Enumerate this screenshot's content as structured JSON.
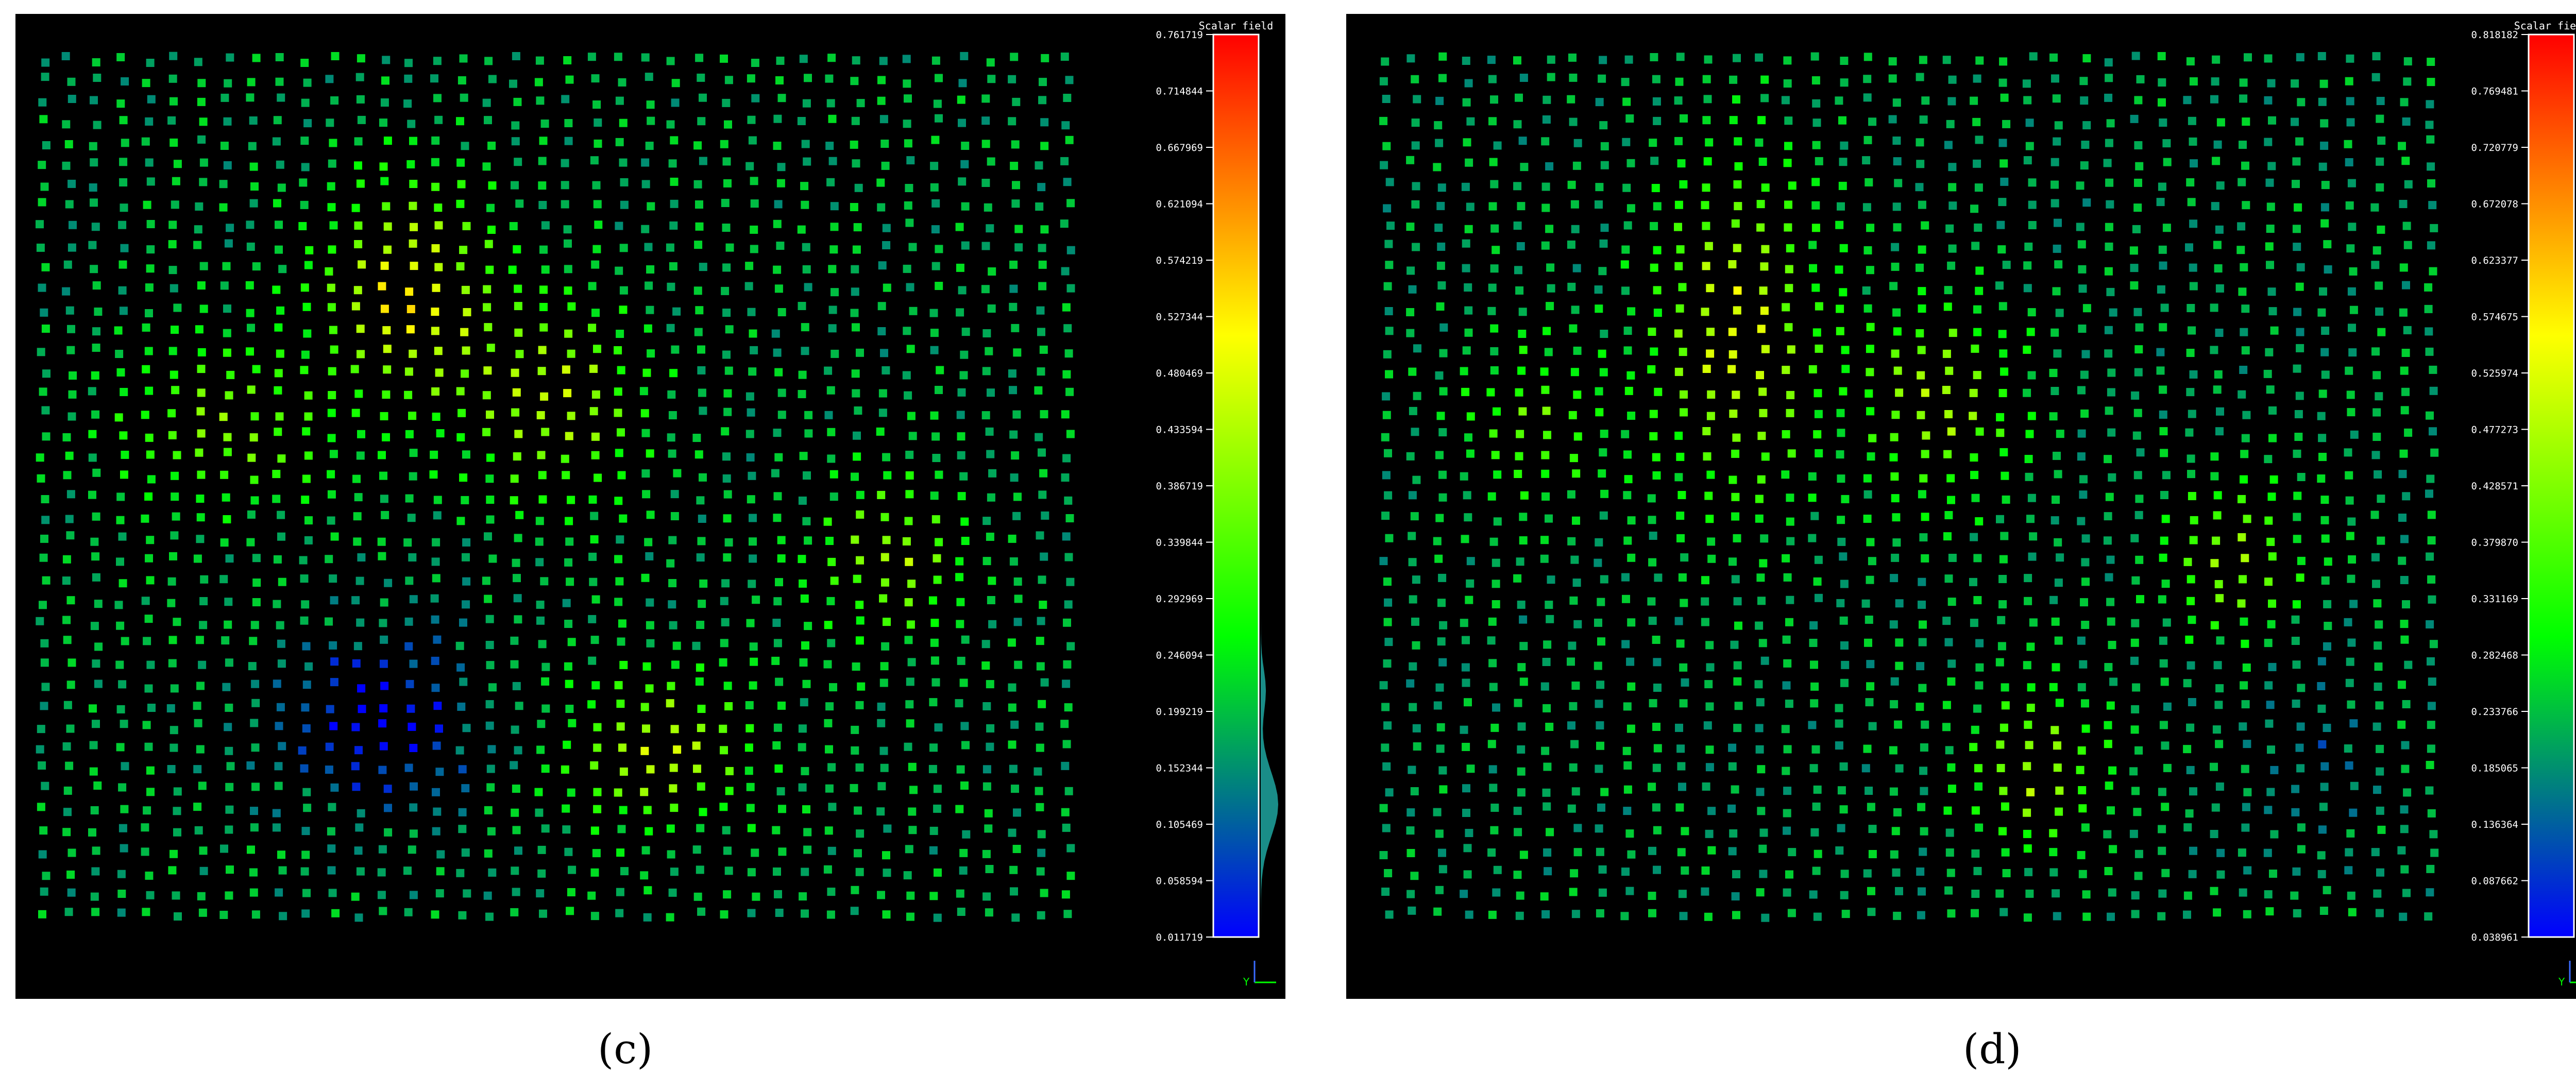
{
  "chart_data": [
    {
      "type": "scatter",
      "panel": "c",
      "caption": "(c)",
      "title": "",
      "colorbar": {
        "title": "Scalar field",
        "min": 0.011719,
        "max": 0.761719,
        "ticks": [
          "0.761719",
          "0.714844",
          "0.667969",
          "0.621094",
          "0.574219",
          "0.527344",
          "0.480469",
          "0.433594",
          "0.386719",
          "0.339844",
          "0.292969",
          "0.246094",
          "0.199219",
          "0.152344",
          "0.105469",
          "0.058594",
          "0.011719"
        ],
        "colormap": [
          "#0000ff",
          "#00ff00",
          "#ffff00",
          "#ff0000"
        ]
      },
      "grid": {
        "cols": 40,
        "rows": 42,
        "base_value": 0.2,
        "point_color": "scalar"
      },
      "hotspots": [
        {
          "label": "upper-left high region",
          "cx": 0.36,
          "cy": 0.28,
          "sx": 0.08,
          "sy": 0.12,
          "value": 0.38
        },
        {
          "label": "upper-middle high region",
          "cx": 0.5,
          "cy": 0.4,
          "sx": 0.08,
          "sy": 0.1,
          "value": 0.3
        },
        {
          "label": "left band",
          "cx": 0.18,
          "cy": 0.43,
          "sx": 0.09,
          "sy": 0.09,
          "value": 0.22
        },
        {
          "label": "right high region",
          "cx": 0.82,
          "cy": 0.58,
          "sx": 0.06,
          "sy": 0.08,
          "value": 0.28
        },
        {
          "label": "lower-middle high region",
          "cx": 0.6,
          "cy": 0.8,
          "sx": 0.08,
          "sy": 0.08,
          "value": 0.32
        },
        {
          "label": "lower-left low region",
          "cx": 0.33,
          "cy": 0.77,
          "sx": 0.09,
          "sy": 0.09,
          "value": -0.23
        }
      ],
      "peak": {
        "value": 0.761719
      },
      "axis_indicator": {
        "label": "Y",
        "icon": "axis-triad-icon"
      }
    },
    {
      "type": "scatter",
      "panel": "d",
      "caption": "(d)",
      "title": "",
      "colorbar": {
        "title": "Scalar field",
        "min": 0.038961,
        "max": 0.818182,
        "ticks": [
          "0.818182",
          "0.769481",
          "0.720779",
          "0.672078",
          "0.623377",
          "0.574675",
          "0.525974",
          "0.477273",
          "0.428571",
          "0.379870",
          "0.331169",
          "0.282468",
          "0.233766",
          "0.185065",
          "0.136364",
          "0.087662",
          "0.038961"
        ],
        "colormap": [
          "#0000ff",
          "#00ff00",
          "#ffff00",
          "#ff0000"
        ]
      },
      "grid": {
        "cols": 40,
        "rows": 42,
        "base_value": 0.2,
        "point_color": "scalar"
      },
      "hotspots": [
        {
          "label": "upper-left high region",
          "cx": 0.34,
          "cy": 0.32,
          "sx": 0.07,
          "sy": 0.18,
          "value": 0.36
        },
        {
          "label": "upper-middle high region",
          "cx": 0.53,
          "cy": 0.4,
          "sx": 0.07,
          "sy": 0.1,
          "value": 0.3
        },
        {
          "label": "left band",
          "cx": 0.15,
          "cy": 0.43,
          "sx": 0.07,
          "sy": 0.09,
          "value": 0.2
        },
        {
          "label": "right high region",
          "cx": 0.8,
          "cy": 0.58,
          "sx": 0.06,
          "sy": 0.08,
          "value": 0.28
        },
        {
          "label": "lower-middle high region",
          "cx": 0.62,
          "cy": 0.82,
          "sx": 0.06,
          "sy": 0.08,
          "value": 0.3
        },
        {
          "label": "lower-right low region",
          "cx": 0.87,
          "cy": 0.8,
          "sx": 0.05,
          "sy": 0.1,
          "value": -0.08
        }
      ],
      "peak": {
        "value": 0.818182
      },
      "axis_indicator": {
        "label": "Y",
        "icon": "axis-triad-icon"
      }
    }
  ]
}
